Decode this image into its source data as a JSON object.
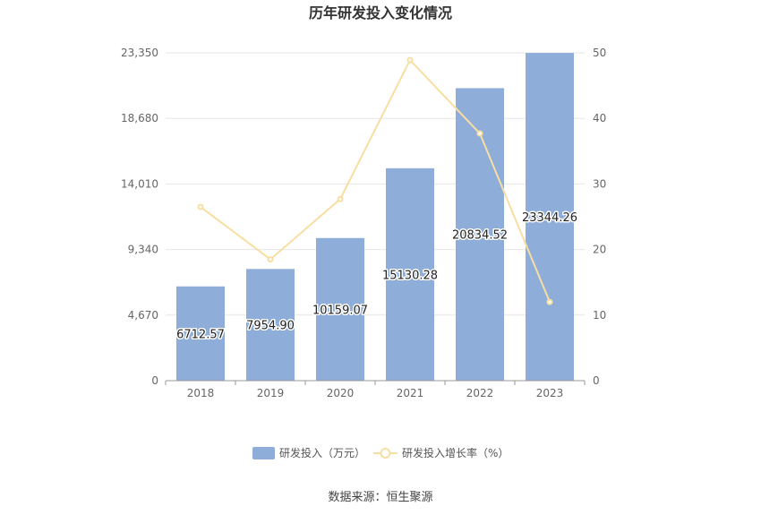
{
  "chart_data": {
    "type": "bar",
    "title": "历年研发投入变化情况",
    "categories": [
      "2018",
      "2019",
      "2020",
      "2021",
      "2022",
      "2023"
    ],
    "series": [
      {
        "name": "研发投入（万元）",
        "type": "bar",
        "axis": "left",
        "values": [
          6712.57,
          7954.9,
          10159.07,
          15130.28,
          20834.52,
          23344.26
        ],
        "value_labels": [
          "6712.57",
          "7954.90",
          "10159.07",
          "15130.28",
          "20834.52",
          "23344.26"
        ]
      },
      {
        "name": "研发投入增长率（%）",
        "type": "line",
        "axis": "right",
        "values": [
          26.5,
          18.5,
          27.7,
          48.9,
          37.7,
          12.0
        ]
      }
    ],
    "y_left": {
      "ylim": [
        0,
        23350
      ],
      "ticks": [
        "0",
        "4,670",
        "9,340",
        "14,010",
        "18,680",
        "23,350"
      ]
    },
    "y_right": {
      "ylim": [
        0,
        50
      ],
      "ticks": [
        "0",
        "10",
        "20",
        "30",
        "40",
        "50"
      ]
    },
    "grid": true,
    "legend": "bottom-center",
    "colors": {
      "bar": "#8eadd9",
      "line": "#f8dea3",
      "grid": "#e6e6e6",
      "axis": "#999999"
    }
  },
  "footer": {
    "source": "数据来源：恒生聚源"
  }
}
